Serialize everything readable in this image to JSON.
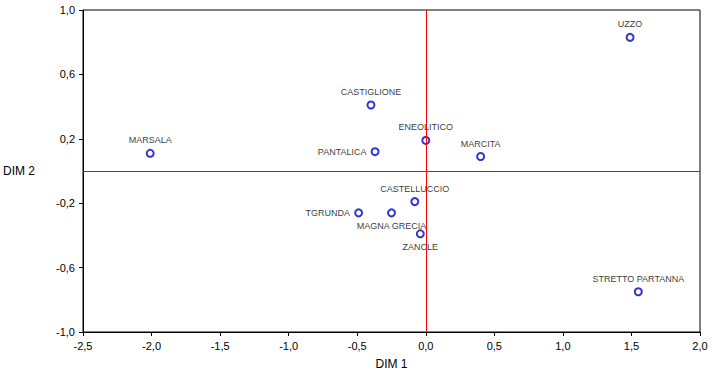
{
  "chart_data": {
    "type": "scatter",
    "x_label": "DIM 1",
    "y_label": "DIM 2",
    "labels": [
      "UZZO",
      "CASTIGLIONE",
      "ENEOLITICO",
      "PANTALICA",
      "MARSALA",
      "MARCITA",
      "CASTELLUCCIO",
      "TGRUNDA",
      "MAGNA GRECIA",
      "ZANCLE",
      "STRETTO PARTANNA"
    ],
    "x": [
      1.49,
      -0.4,
      0.0,
      -0.37,
      -2.01,
      0.4,
      -0.08,
      -0.49,
      -0.25,
      -0.04,
      1.55
    ],
    "y": [
      0.83,
      0.41,
      0.19,
      0.12,
      0.11,
      0.09,
      -0.19,
      -0.26,
      -0.26,
      -0.39,
      -0.75
    ],
    "color": "#0000cc",
    "marker": "circle",
    "xlim": [
      -2.5,
      2.0
    ],
    "ylim": [
      -1.0,
      1.0
    ],
    "xticks": [
      {
        "value": -2.5,
        "label": "-2,5"
      },
      {
        "value": -2.0,
        "label": "-2,0"
      },
      {
        "value": -1.5,
        "label": "-1,5"
      },
      {
        "value": -1.0,
        "label": "-1,0"
      },
      {
        "value": -0.5,
        "label": "-0,5"
      },
      {
        "value": 0.0,
        "label": "0,0"
      },
      {
        "value": 0.5,
        "label": "0,5"
      },
      {
        "value": 1.0,
        "label": "1,0"
      },
      {
        "value": 1.5,
        "label": "1,5"
      },
      {
        "value": 2.0,
        "label": "2,0"
      }
    ],
    "yticks": [
      {
        "value": -1.0,
        "label": "-1,0"
      },
      {
        "value": -0.6,
        "label": "-0,6"
      },
      {
        "value": -0.2,
        "label": "-0,2"
      },
      {
        "value": 0.2,
        "label": "0,2"
      },
      {
        "value": 0.6,
        "label": "0,6"
      },
      {
        "value": 1.0,
        "label": "1,0"
      }
    ],
    "grid": false
  }
}
